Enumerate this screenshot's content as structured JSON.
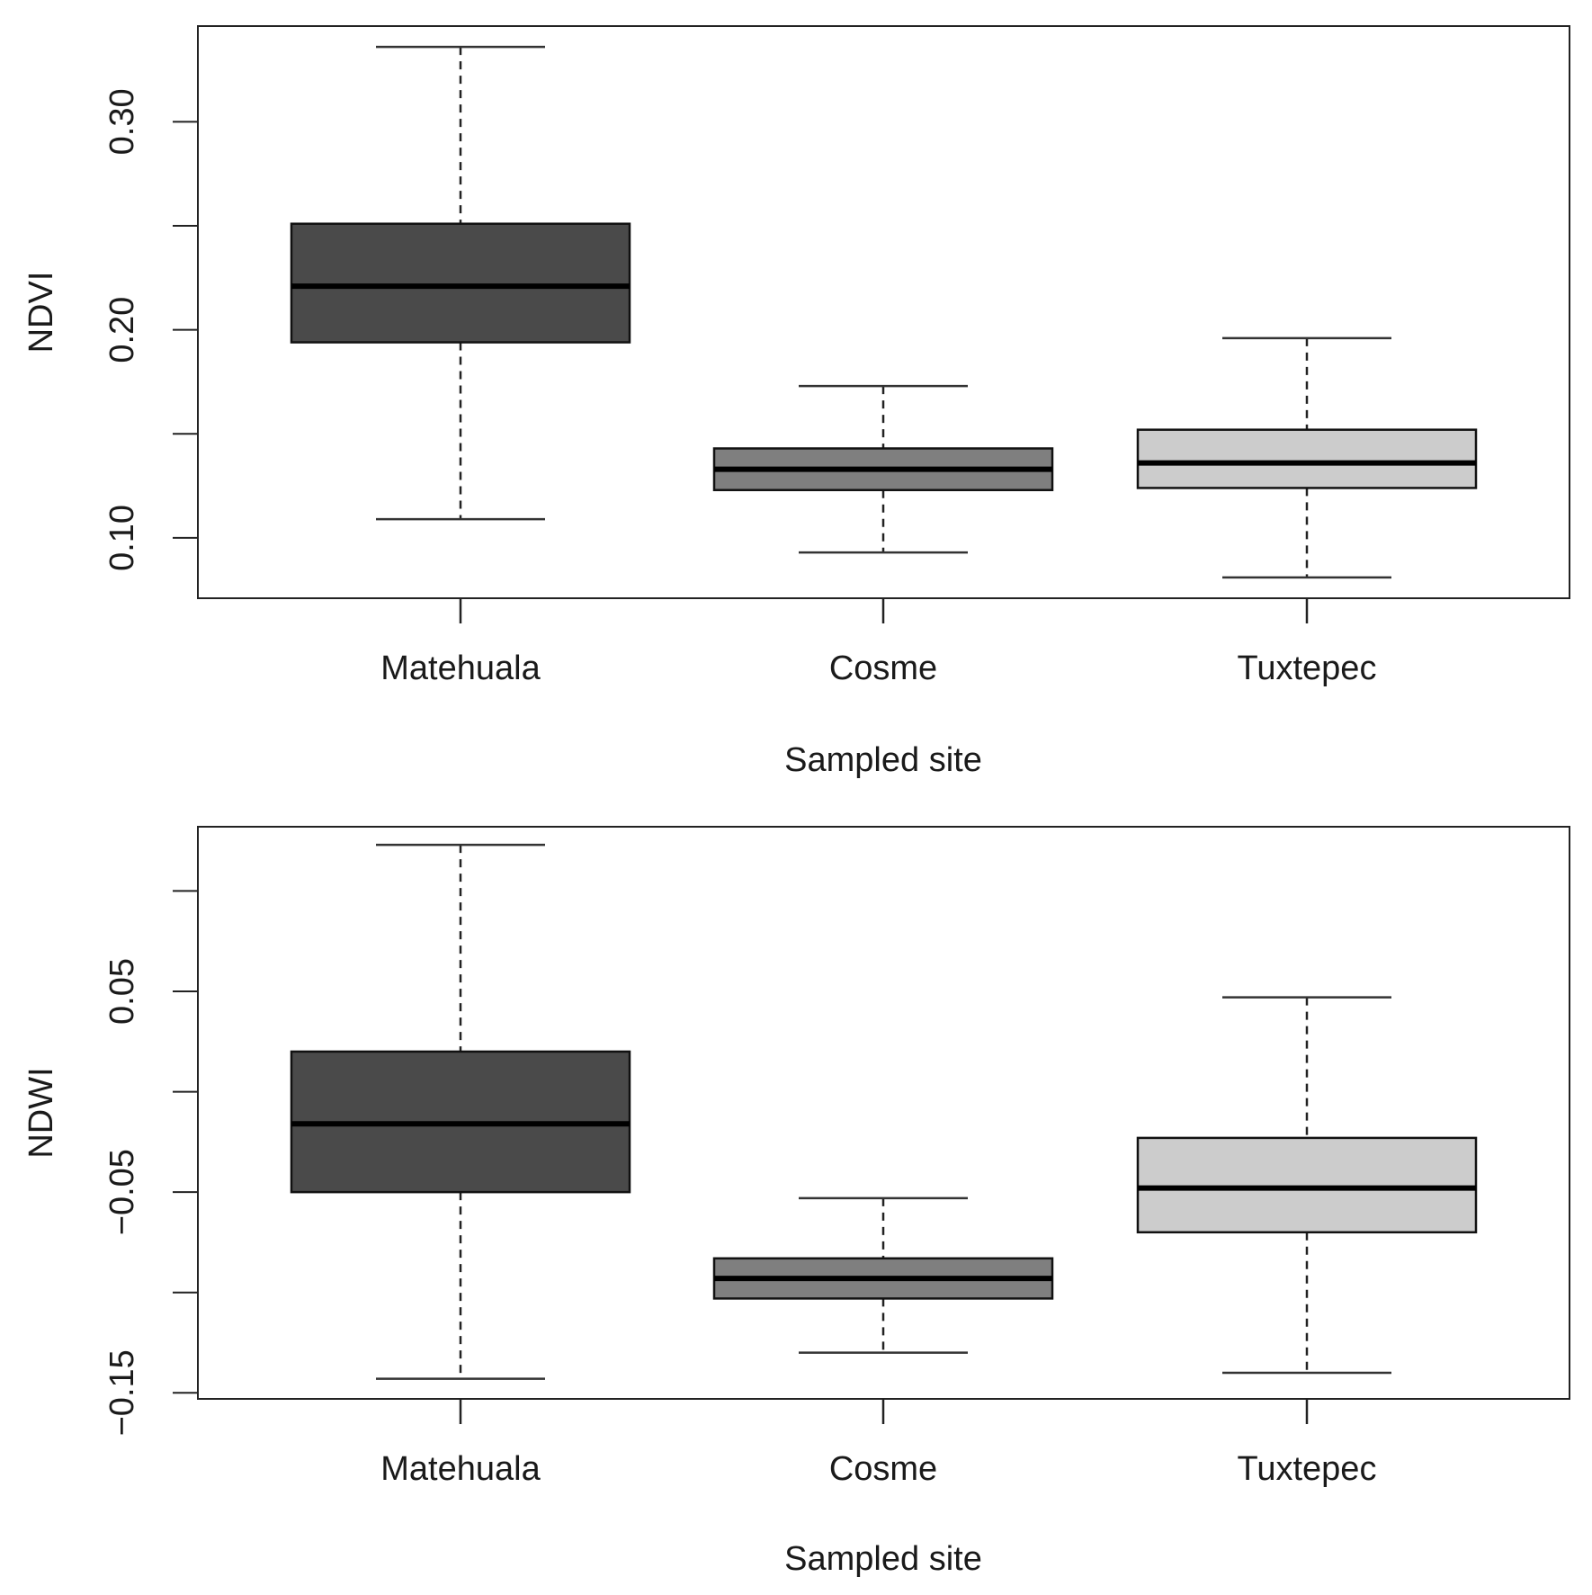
{
  "chart_data": [
    {
      "type": "boxplot",
      "xlabel": "Sampled site",
      "ylabel": "NDVI",
      "categories": [
        "Matehuala",
        "Cosme",
        "Tuxtepec"
      ],
      "ylim": [
        0.071,
        0.346
      ],
      "y_ticks": [
        0.1,
        0.15,
        0.2,
        0.25,
        0.3
      ],
      "y_tick_labels": [
        "0.10",
        "",
        "0.20",
        "",
        "0.30"
      ],
      "grid": false,
      "colors": [
        "#4a4a4a",
        "#7f7f7f",
        "#cccccc"
      ],
      "boxes": [
        {
          "category": "Matehuala",
          "whisker_low": 0.109,
          "q1": 0.194,
          "median": 0.221,
          "q3": 0.251,
          "whisker_high": 0.336
        },
        {
          "category": "Cosme",
          "whisker_low": 0.093,
          "q1": 0.123,
          "median": 0.133,
          "q3": 0.143,
          "whisker_high": 0.173
        },
        {
          "category": "Tuxtepec",
          "whisker_low": 0.081,
          "q1": 0.124,
          "median": 0.136,
          "q3": 0.152,
          "whisker_high": 0.196
        }
      ]
    },
    {
      "type": "boxplot",
      "xlabel": "Sampled site",
      "ylabel": "NDWI",
      "categories": [
        "Matehuala",
        "Cosme",
        "Tuxtepec"
      ],
      "ylim": [
        -0.153,
        0.132
      ],
      "y_ticks": [
        -0.15,
        -0.1,
        -0.05,
        0.0,
        0.05,
        0.1
      ],
      "y_tick_labels": [
        "−0.15",
        "",
        "−0.05",
        "",
        "0.05",
        ""
      ],
      "grid": false,
      "colors": [
        "#4a4a4a",
        "#7f7f7f",
        "#cccccc"
      ],
      "boxes": [
        {
          "category": "Matehuala",
          "whisker_low": -0.143,
          "q1": -0.05,
          "median": -0.016,
          "q3": 0.02,
          "whisker_high": 0.123
        },
        {
          "category": "Cosme",
          "whisker_low": -0.13,
          "q1": -0.103,
          "median": -0.093,
          "q3": -0.083,
          "whisker_high": -0.053
        },
        {
          "category": "Tuxtepec",
          "whisker_low": -0.14,
          "q1": -0.07,
          "median": -0.048,
          "q3": -0.023,
          "whisker_high": 0.047
        }
      ]
    }
  ]
}
